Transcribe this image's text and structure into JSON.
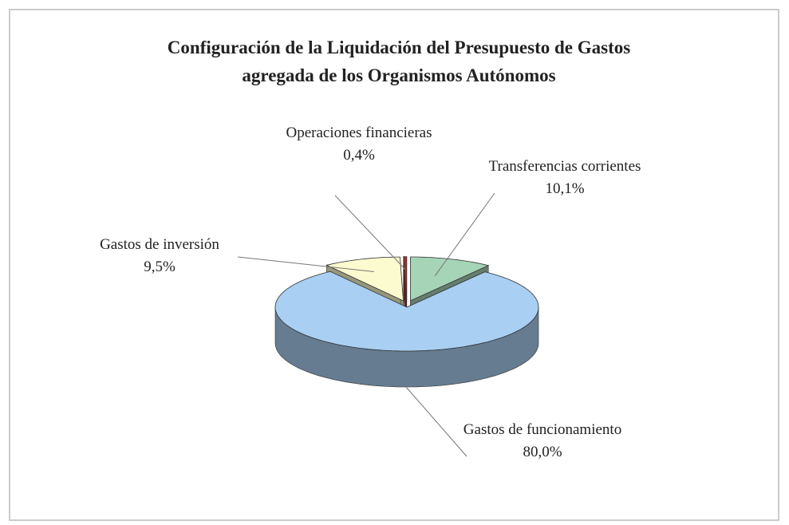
{
  "chart_data": {
    "type": "pie",
    "title": "Configuración de la Liquidación del Presupuesto de Gastos agregada de los Organismos Autónomos",
    "categories": [
      "Transferencias corrientes",
      "Gastos de funcionamiento",
      "Gastos de inversión",
      "Operaciones financieras"
    ],
    "values": [
      10.1,
      80.0,
      9.5,
      0.4
    ],
    "value_labels": [
      "10,1%",
      "80,0%",
      "9,5%",
      "0,4%"
    ],
    "colors": [
      "#a6d4b6",
      "#a9cff2",
      "#fcfbcf",
      "#a3302c"
    ]
  }
}
